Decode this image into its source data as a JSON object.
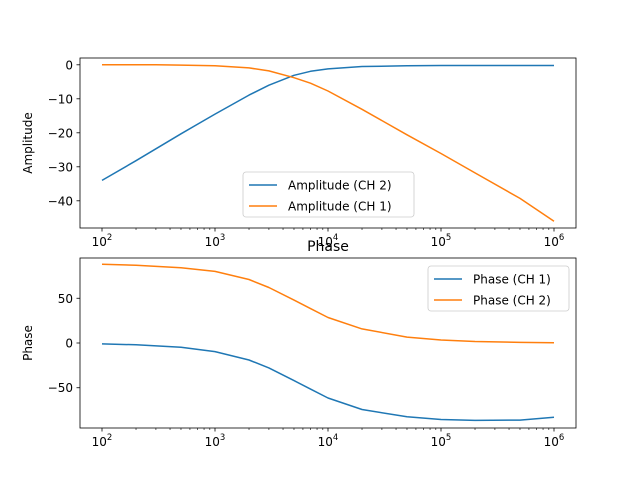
{
  "chart_data": [
    {
      "type": "line",
      "title": "",
      "xlabel": "",
      "ylabel": "Amplitude",
      "xscale": "log",
      "xlim": [
        100,
        1000000
      ],
      "ylim": [
        -48,
        2
      ],
      "xticks": [
        100,
        1000,
        10000,
        100000,
        1000000
      ],
      "yticks": [
        0,
        -10,
        -20,
        -30,
        -40
      ],
      "grid": false,
      "legend_position": "lower-center",
      "series": [
        {
          "name": "Amplitude (CH 2)",
          "color": "#1f77b4",
          "x": [
            100,
            200,
            500,
            1000,
            2000,
            3000,
            5000,
            7000,
            10000,
            20000,
            50000,
            100000,
            200000,
            500000,
            1000000
          ],
          "y": [
            -34,
            -28.2,
            -20.3,
            -14.5,
            -8.9,
            -6.0,
            -3.1,
            -1.9,
            -1.2,
            -0.5,
            -0.3,
            -0.2,
            -0.2,
            -0.2,
            -0.2
          ]
        },
        {
          "name": "Amplitude (CH 1)",
          "color": "#ff7f0e",
          "x": [
            100,
            300,
            500,
            1000,
            2000,
            3000,
            5000,
            7000,
            10000,
            20000,
            50000,
            100000,
            200000,
            500000,
            1000000
          ],
          "y": [
            0,
            0,
            -0.1,
            -0.3,
            -0.9,
            -1.8,
            -3.8,
            -5.4,
            -7.7,
            -13.1,
            -20.6,
            -26.1,
            -31.8,
            -39.3,
            -46
          ]
        }
      ]
    },
    {
      "type": "line",
      "title": "Phase",
      "xlabel": "",
      "ylabel": "Phase",
      "xscale": "log",
      "xlim": [
        100,
        1000000
      ],
      "ylim": [
        -95,
        95
      ],
      "xticks": [
        100,
        1000,
        10000,
        100000,
        1000000
      ],
      "yticks": [
        50,
        0,
        -50
      ],
      "grid": false,
      "legend_position": "upper-right",
      "series": [
        {
          "name": "Phase (CH 1)",
          "color": "#1f77b4",
          "x": [
            100,
            200,
            500,
            1000,
            2000,
            3000,
            5000,
            7000,
            10000,
            20000,
            50000,
            100000,
            200000,
            500000,
            1000000
          ],
          "y": [
            -1,
            -2,
            -4.8,
            -9.6,
            -19,
            -27.8,
            -42,
            -51.5,
            -61.5,
            -74.3,
            -82.5,
            -85.5,
            -86.5,
            -86.2,
            -83
          ]
        },
        {
          "name": "Phase (CH 2)",
          "color": "#ff7f0e",
          "x": [
            100,
            200,
            500,
            1000,
            2000,
            3000,
            5000,
            7000,
            10000,
            20000,
            50000,
            100000,
            200000,
            500000,
            1000000
          ],
          "y": [
            88,
            87,
            84,
            80,
            71,
            62,
            48,
            38.5,
            28.5,
            15.8,
            6.6,
            3.3,
            1.7,
            0.7,
            0.3
          ]
        }
      ]
    }
  ]
}
